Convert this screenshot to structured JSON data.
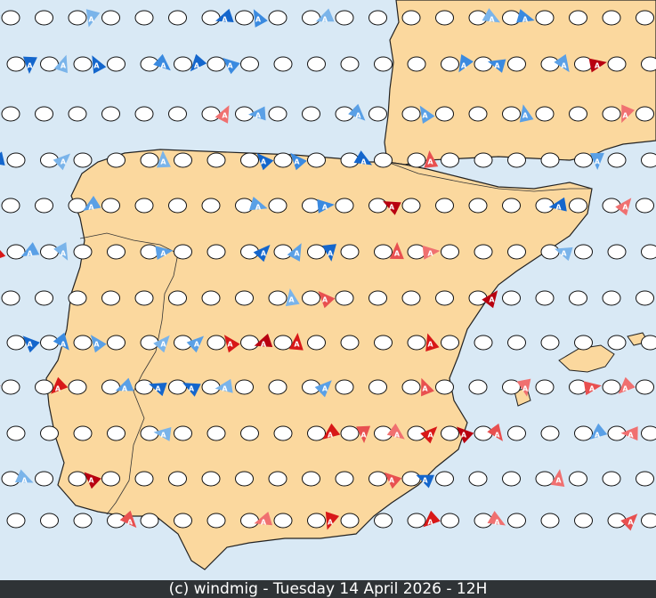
{
  "marker_label": "A",
  "footer": "(c) windmig - Tuesday 14 April 2026 - 12H"
}
